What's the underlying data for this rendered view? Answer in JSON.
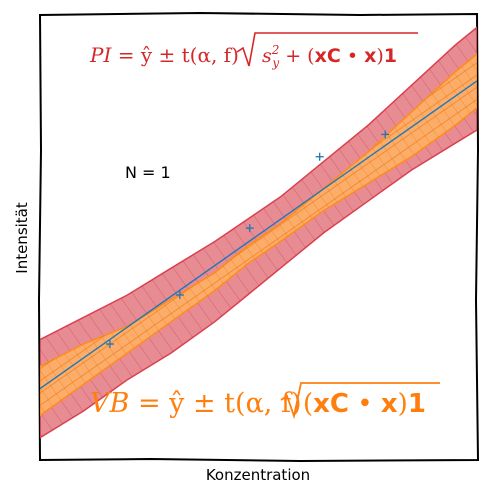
{
  "chart_data": {
    "type": "line",
    "xlabel": "Konzentration",
    "ylabel": "Intensität",
    "xlim": [
      0,
      1
    ],
    "ylim": [
      0,
      1
    ],
    "grid": false,
    "fit_line": {
      "x": [
        0,
        1
      ],
      "y": [
        0.16,
        0.85
      ]
    },
    "points": {
      "x": [
        0.16,
        0.32,
        0.48,
        0.64,
        0.79
      ],
      "y": [
        0.26,
        0.37,
        0.52,
        0.68,
        0.73
      ]
    },
    "prediction_interval": {
      "x": [
        0,
        0.1,
        0.2,
        0.3,
        0.4,
        0.475,
        0.55,
        0.65,
        0.75,
        0.85,
        0.95,
        1
      ],
      "lower": [
        0.05,
        0.11,
        0.18,
        0.24,
        0.31,
        0.37,
        0.43,
        0.51,
        0.58,
        0.65,
        0.71,
        0.74
      ],
      "upper": [
        0.27,
        0.32,
        0.37,
        0.43,
        0.49,
        0.54,
        0.59,
        0.67,
        0.75,
        0.84,
        0.93,
        0.97
      ]
    },
    "confidence_interval": {
      "x": [
        0,
        0.1,
        0.2,
        0.3,
        0.4,
        0.475,
        0.55,
        0.65,
        0.75,
        0.85,
        0.95,
        1
      ],
      "lower": [
        0.1,
        0.17,
        0.24,
        0.31,
        0.38,
        0.44,
        0.49,
        0.56,
        0.62,
        0.68,
        0.75,
        0.79
      ],
      "upper": [
        0.21,
        0.26,
        0.3,
        0.36,
        0.42,
        0.48,
        0.53,
        0.61,
        0.69,
        0.78,
        0.87,
        0.91
      ]
    },
    "annotations": {
      "n_label": "N = 1",
      "pi_formula": {
        "lhs": "PI",
        "mid": "= ŷ ± t(α, f)",
        "radicand_plain": "s",
        "radicand_sup": "2",
        "radicand_sub": "y",
        "radicand_plus": " + (",
        "radicand_bold_a": "xC",
        "radicand_dot": " • ",
        "radicand_bold_b": "x",
        "radicand_close": ")",
        "radicand_bold_c": "1"
      },
      "vb_formula": {
        "lhs": "VB",
        "mid": "= ŷ ± t(α, f)",
        "radicand_open": "(",
        "radicand_bold_a": "xC",
        "radicand_dot": " • ",
        "radicand_bold_b": "x",
        "radicand_close": ")",
        "radicand_bold_c": "1"
      }
    },
    "colors": {
      "pi_fill": "#e06c75",
      "pi_edge": "#d9414f",
      "ci_fill": "#ffb066",
      "ci_edge": "#ff8c1a",
      "fit_line": "#1f77b4",
      "points": "#1f77b4",
      "pi_text": "#d62728",
      "vb_text": "#ff7f0e"
    }
  }
}
